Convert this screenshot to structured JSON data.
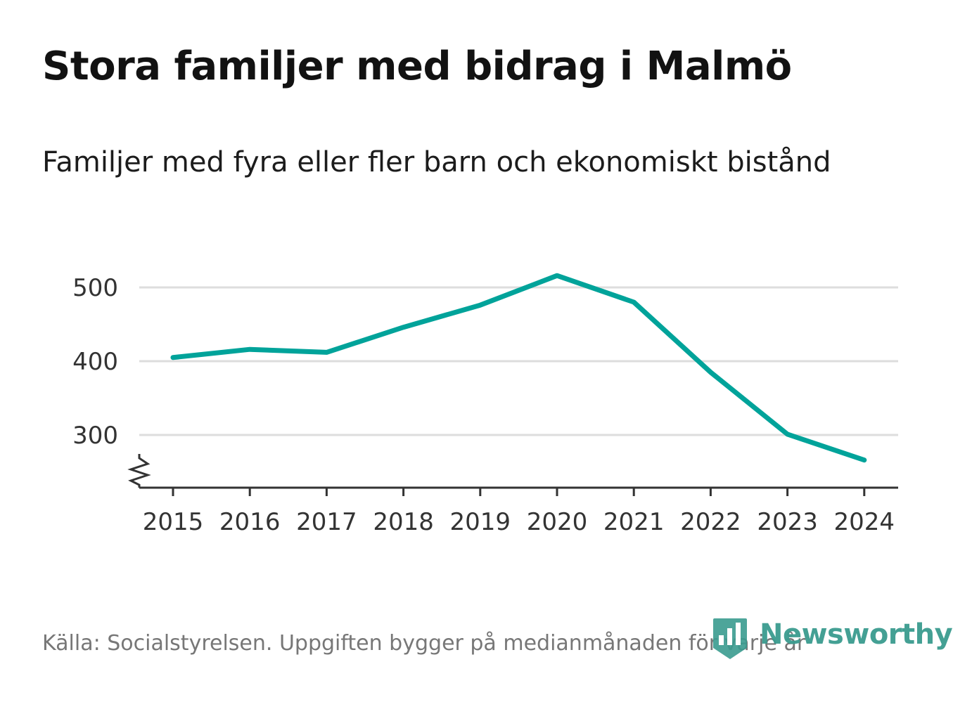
{
  "title": "Stora familjer med bidrag i Malmö",
  "subtitle": "Familjer med fyra eller fler barn och ekonomiskt bistånd",
  "source": "Källa: Socialstyrelsen. Uppgiften bygger på medianmånaden för varje år",
  "brand": {
    "name": "Newsworthy",
    "color": "#3a9b8f"
  },
  "colors": {
    "line": "#00a39a",
    "grid": "#dddddd",
    "axis": "#333333"
  },
  "chart_data": {
    "type": "line",
    "title": "Stora familjer med bidrag i Malmö",
    "xlabel": "",
    "ylabel": "",
    "x": [
      "2015",
      "2016",
      "2017",
      "2018",
      "2019",
      "2020",
      "2021",
      "2022",
      "2023",
      "2024"
    ],
    "series": [
      {
        "name": "Familjer med fyra eller fler barn och ekonomiskt bistånd",
        "values": [
          405,
          416,
          412,
          446,
          476,
          516,
          480,
          385,
          301,
          266
        ]
      }
    ],
    "y_ticks": [
      300,
      400,
      500
    ],
    "ylim": [
      228,
      520
    ],
    "y_axis_break": true,
    "grid": true
  }
}
